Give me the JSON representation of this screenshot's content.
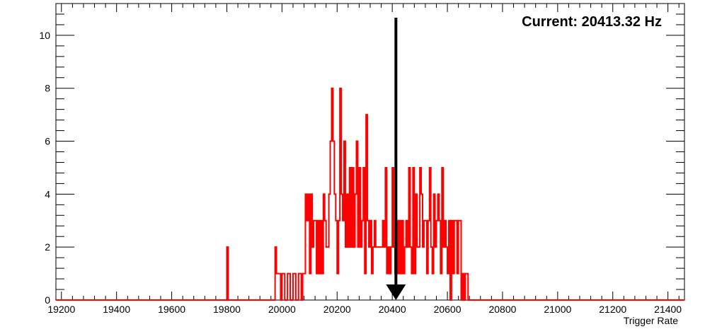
{
  "chart_data": {
    "type": "histogram",
    "title": "",
    "xlabel": "Trigger Rate",
    "ylabel": "",
    "xlim": [
      19180,
      21460
    ],
    "ylim": [
      0,
      11.2
    ],
    "grid": false,
    "legend": "none",
    "x_ticks": [
      19200,
      19400,
      19600,
      19800,
      20000,
      20200,
      20400,
      20600,
      20800,
      21000,
      21200,
      21400
    ],
    "y_ticks": [
      0,
      2,
      4,
      6,
      8,
      10
    ],
    "annotation": "Current: 20413.32 Hz",
    "marker_x": 20413.32,
    "marker_color": "#000000",
    "series": [
      {
        "color": "#ff0000",
        "bin_width": 5,
        "bins": [
          [
            19800,
            2
          ],
          [
            19975,
            2
          ],
          [
            19980,
            1
          ],
          [
            19985,
            1
          ],
          [
            19990,
            1
          ],
          [
            20000,
            1
          ],
          [
            20005,
            1
          ],
          [
            20020,
            1
          ],
          [
            20025,
            1
          ],
          [
            20040,
            1
          ],
          [
            20045,
            1
          ],
          [
            20060,
            1
          ],
          [
            20065,
            1
          ],
          [
            20075,
            1
          ],
          [
            20080,
            1
          ],
          [
            20085,
            4
          ],
          [
            20090,
            3
          ],
          [
            20095,
            4
          ],
          [
            20100,
            1
          ],
          [
            20105,
            4
          ],
          [
            20110,
            2
          ],
          [
            20115,
            3
          ],
          [
            20120,
            3
          ],
          [
            20125,
            1
          ],
          [
            20130,
            3
          ],
          [
            20135,
            1
          ],
          [
            20140,
            3
          ],
          [
            20145,
            1
          ],
          [
            20150,
            4
          ],
          [
            20155,
            3
          ],
          [
            20160,
            2
          ],
          [
            20165,
            2
          ],
          [
            20170,
            4
          ],
          [
            20175,
            6
          ],
          [
            20180,
            8
          ],
          [
            20185,
            6
          ],
          [
            20190,
            4
          ],
          [
            20195,
            3
          ],
          [
            20200,
            1
          ],
          [
            20205,
            3
          ],
          [
            20210,
            8
          ],
          [
            20215,
            4
          ],
          [
            20220,
            3
          ],
          [
            20225,
            6
          ],
          [
            20230,
            2
          ],
          [
            20235,
            4
          ],
          [
            20240,
            2
          ],
          [
            20245,
            5
          ],
          [
            20250,
            2
          ],
          [
            20255,
            5
          ],
          [
            20260,
            2
          ],
          [
            20265,
            4
          ],
          [
            20270,
            6
          ],
          [
            20275,
            2
          ],
          [
            20280,
            5
          ],
          [
            20285,
            2
          ],
          [
            20290,
            3
          ],
          [
            20295,
            5
          ],
          [
            20300,
            1
          ],
          [
            20305,
            7
          ],
          [
            20310,
            3
          ],
          [
            20315,
            2
          ],
          [
            20320,
            3
          ],
          [
            20325,
            1
          ],
          [
            20330,
            2
          ],
          [
            20335,
            3
          ],
          [
            20340,
            2
          ],
          [
            20345,
            2
          ],
          [
            20350,
            2
          ],
          [
            20355,
            2
          ],
          [
            20360,
            2
          ],
          [
            20365,
            3
          ],
          [
            20370,
            2
          ],
          [
            20375,
            5
          ],
          [
            20380,
            1
          ],
          [
            20385,
            2
          ],
          [
            20390,
            1
          ],
          [
            20395,
            2
          ],
          [
            20400,
            5
          ],
          [
            20405,
            2
          ],
          [
            20410,
            1
          ],
          [
            20415,
            3
          ],
          [
            20420,
            1
          ],
          [
            20425,
            3
          ],
          [
            20430,
            1
          ],
          [
            20435,
            3
          ],
          [
            20440,
            1
          ],
          [
            20445,
            2
          ],
          [
            20450,
            3
          ],
          [
            20455,
            2
          ],
          [
            20460,
            5
          ],
          [
            20465,
            2
          ],
          [
            20470,
            1
          ],
          [
            20475,
            5
          ],
          [
            20480,
            1
          ],
          [
            20485,
            4
          ],
          [
            20490,
            2
          ],
          [
            20495,
            2
          ],
          [
            20500,
            5
          ],
          [
            20505,
            4
          ],
          [
            20510,
            2
          ],
          [
            20515,
            3
          ],
          [
            20520,
            3
          ],
          [
            20525,
            1
          ],
          [
            20530,
            3
          ],
          [
            20535,
            5
          ],
          [
            20540,
            2
          ],
          [
            20545,
            1
          ],
          [
            20550,
            4
          ],
          [
            20555,
            2
          ],
          [
            20560,
            3
          ],
          [
            20565,
            4
          ],
          [
            20570,
            3
          ],
          [
            20575,
            1
          ],
          [
            20580,
            5
          ],
          [
            20585,
            2
          ],
          [
            20590,
            3
          ],
          [
            20595,
            2
          ],
          [
            20600,
            1
          ],
          [
            20605,
            3
          ],
          [
            20615,
            3
          ],
          [
            20620,
            1
          ],
          [
            20625,
            3
          ],
          [
            20630,
            3
          ],
          [
            20635,
            1
          ],
          [
            20640,
            3
          ],
          [
            20645,
            3
          ],
          [
            20655,
            1
          ],
          [
            20665,
            1
          ],
          [
            20670,
            1
          ]
        ]
      }
    ]
  }
}
